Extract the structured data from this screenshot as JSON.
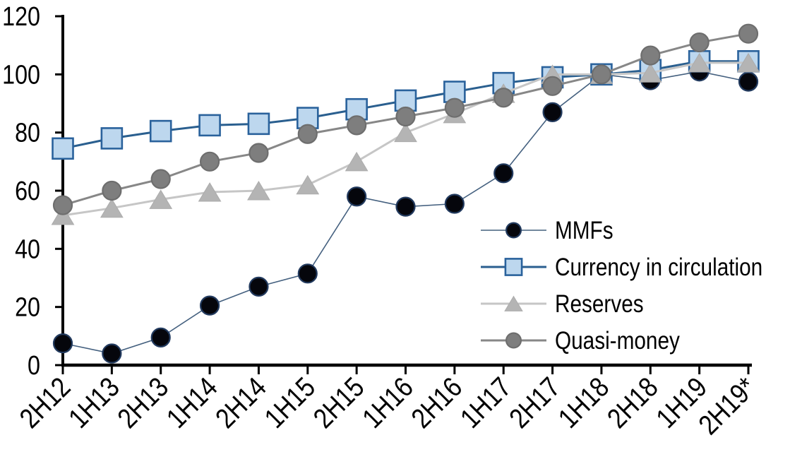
{
  "chart_data": {
    "type": "line",
    "title": "",
    "categories": [
      "2H12",
      "1H13",
      "2H13",
      "1H14",
      "2H14",
      "1H15",
      "2H15",
      "1H16",
      "2H16",
      "1H17",
      "2H17",
      "1H18",
      "2H18",
      "1H19",
      "2H19*"
    ],
    "series": [
      {
        "name": "MMFs",
        "marker": "circle",
        "values": [
          7.5,
          4,
          9.5,
          20.5,
          27,
          31.5,
          58,
          54.5,
          55.5,
          66,
          87,
          100,
          98,
          101,
          97.5
        ],
        "line_color": "#44607F",
        "line_width": 1.6,
        "marker_fill": "#05060C",
        "marker_stroke": "#223A5E"
      },
      {
        "name": "Currency in circulation",
        "marker": "square",
        "values": [
          74.5,
          78,
          80.5,
          82.5,
          83,
          85,
          88,
          91,
          94,
          97,
          99,
          100,
          101.5,
          104.5,
          104.5
        ],
        "line_color": "#2A5F8F",
        "line_width": 3,
        "marker_fill": "#BDD7EE",
        "marker_stroke": "#2A629C"
      },
      {
        "name": "Reserves",
        "marker": "triangle",
        "values": [
          51.5,
          54,
          57,
          59.5,
          60,
          62,
          70,
          80,
          86.5,
          93.5,
          100,
          100,
          100.5,
          104,
          104
        ],
        "line_color": "#C6C6C6",
        "line_width": 3,
        "marker_fill": "#B4B4B4",
        "marker_stroke": "#ACACAC"
      },
      {
        "name": "Quasi-money",
        "marker": "circle",
        "values": [
          55,
          60,
          64,
          70,
          73,
          79.5,
          82.5,
          85.5,
          88.5,
          92,
          96,
          100,
          106.5,
          111,
          114
        ],
        "line_color": "#878787",
        "line_width": 3,
        "marker_fill": "#7E7E7E",
        "marker_stroke": "#6E6E6E"
      }
    ],
    "y_axis": {
      "min": 0,
      "max": 120,
      "step": 20,
      "tick_labels": [
        "0",
        "20",
        "40",
        "60",
        "80",
        "100",
        "120"
      ]
    },
    "x_axis": {
      "label_rotation_deg": -45
    },
    "legend": {
      "position": "inside-right",
      "items": [
        "MMFs",
        "Currency in circulation",
        "Reserves",
        "Quasi-money"
      ]
    },
    "grid": false,
    "background": "#FFFFFF",
    "axis_color": "#000000",
    "text_color": "#000000"
  }
}
